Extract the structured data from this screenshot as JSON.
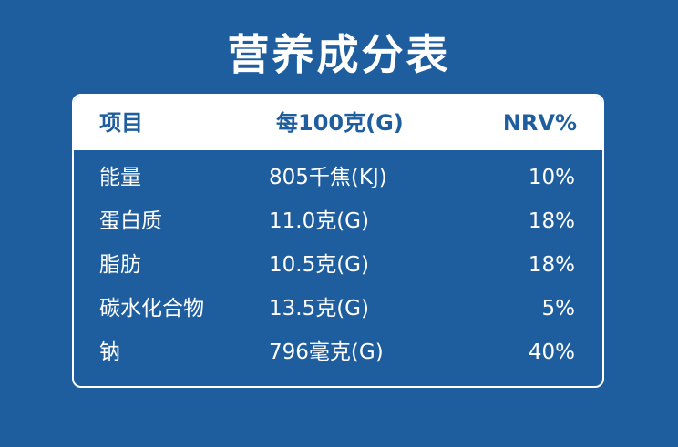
{
  "title": "营养成分表",
  "table": {
    "headers": {
      "name": "项目",
      "amount": "每100克(G)",
      "nrv": "NRV%"
    },
    "rows": [
      {
        "name": "能量",
        "amount": "805千焦(KJ)",
        "nrv": "10%"
      },
      {
        "name": "蛋白质",
        "amount": "11.0克(G)",
        "nrv": "18%"
      },
      {
        "name": "脂肪",
        "amount": "10.5克(G)",
        "nrv": "18%"
      },
      {
        "name": "碳水化合物",
        "amount": "13.5克(G)",
        "nrv": "5%"
      },
      {
        "name": "钠",
        "amount": "796毫克(G)",
        "nrv": "40%"
      }
    ]
  },
  "colors": {
    "background": "#1f5e9e",
    "header_background": "#ffffff",
    "header_text": "#1f5e9e",
    "body_text": "#ffffff"
  }
}
